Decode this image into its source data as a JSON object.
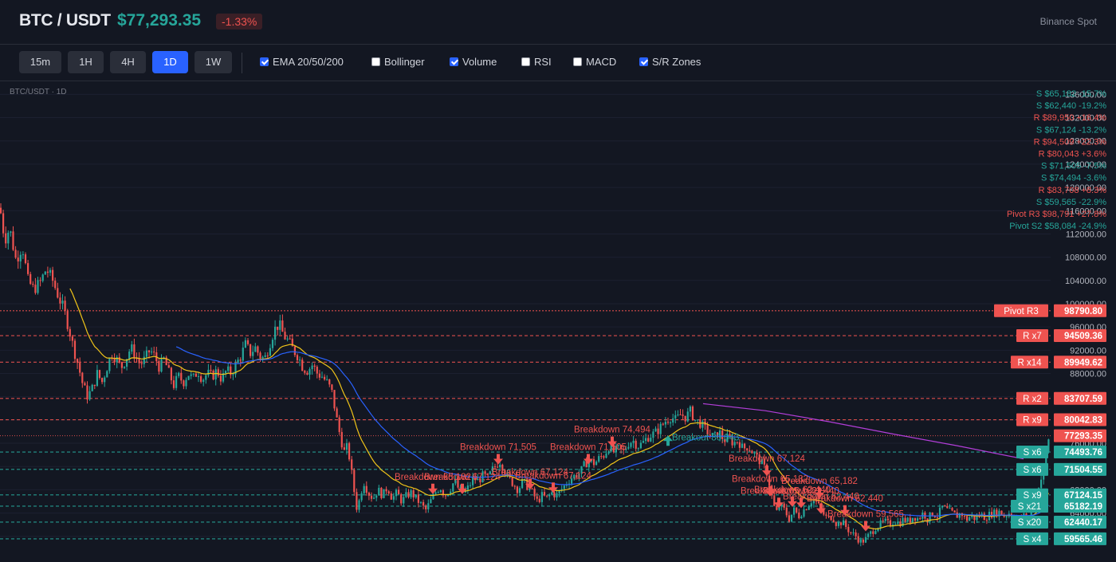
{
  "header": {
    "symbol": "BTC / USDT",
    "price": "$77,293.35",
    "change": "-1.33%",
    "exchange": "Binance Spot"
  },
  "toolbar": {
    "timeframes": [
      {
        "label": "15m",
        "active": false
      },
      {
        "label": "1H",
        "active": false
      },
      {
        "label": "4H",
        "active": false
      },
      {
        "label": "1D",
        "active": true
      },
      {
        "label": "1W",
        "active": false
      }
    ],
    "indicators": [
      {
        "label": "EMA 20/50/200",
        "checked": true
      },
      {
        "label": "Bollinger",
        "checked": false
      },
      {
        "label": "Volume",
        "checked": true
      },
      {
        "label": "RSI",
        "checked": false
      },
      {
        "label": "MACD",
        "checked": false
      },
      {
        "label": "S/R Zones",
        "checked": true
      }
    ]
  },
  "colors": {
    "bull": "#26a69a",
    "bear": "#ef5350",
    "ema20": "#f0c419",
    "ema50": "#2962ff",
    "ema200": "#b23ed8",
    "grid": "#1c2030",
    "background": "#131722"
  },
  "chart_data": {
    "type": "candlestick",
    "caption": "BTC/USDT · 1D",
    "ylim": [
      56400,
      136600
    ],
    "yticks": [
      136000,
      132000,
      128000,
      124000,
      120000,
      116000,
      112000,
      108000,
      104000,
      100000,
      96000,
      92000,
      88000,
      84000,
      80000,
      76000,
      72000,
      68000,
      64000,
      60000
    ],
    "ytick_labels": [
      "136000.00",
      "132000.00",
      "128000.00",
      "124000.00",
      "120000.00",
      "116000.00",
      "112000.00",
      "108000.00",
      "104000.00",
      "100000.00",
      "96000.00",
      "92000.00",
      "88000.00",
      "84000.00",
      "80000.00",
      "76000.00",
      "72000.00",
      "68000.00",
      "64000.00",
      "60000.00"
    ],
    "last_price": 77293.35,
    "last_price_label": "77293.35",
    "close_path": [
      [
        0,
        116500
      ],
      [
        6,
        111000
      ],
      [
        12,
        113000
      ],
      [
        20,
        107500
      ],
      [
        28,
        110000
      ],
      [
        35,
        104000
      ],
      [
        42,
        102500
      ],
      [
        50,
        103500
      ],
      [
        58,
        106000
      ],
      [
        66,
        104000
      ],
      [
        74,
        101000
      ],
      [
        80,
        99000
      ],
      [
        86,
        96000
      ],
      [
        92,
        92500
      ],
      [
        98,
        89500
      ],
      [
        104,
        86000
      ],
      [
        110,
        84000
      ],
      [
        116,
        85500
      ],
      [
        122,
        88000
      ],
      [
        128,
        86500
      ],
      [
        134,
        89000
      ],
      [
        140,
        91500
      ],
      [
        146,
        90500
      ],
      [
        152,
        89000
      ],
      [
        158,
        90500
      ],
      [
        164,
        92500
      ],
      [
        170,
        91000
      ],
      [
        176,
        89500
      ],
      [
        182,
        90500
      ],
      [
        188,
        92000
      ],
      [
        194,
        91000
      ],
      [
        200,
        89000
      ],
      [
        206,
        90500
      ],
      [
        212,
        88000
      ],
      [
        218,
        86000
      ],
      [
        224,
        87500
      ],
      [
        230,
        86500
      ],
      [
        236,
        88000
      ],
      [
        242,
        87000
      ],
      [
        248,
        88500
      ],
      [
        254,
        87000
      ],
      [
        260,
        88000
      ],
      [
        266,
        87500
      ],
      [
        272,
        88500
      ],
      [
        278,
        87000
      ],
      [
        284,
        88500
      ],
      [
        290,
        88000
      ],
      [
        296,
        89500
      ],
      [
        302,
        91000
      ],
      [
        308,
        93000
      ],
      [
        314,
        91500
      ],
      [
        320,
        92500
      ],
      [
        326,
        91000
      ],
      [
        332,
        90500
      ],
      [
        338,
        93000
      ],
      [
        344,
        95500
      ],
      [
        350,
        96500
      ],
      [
        356,
        94500
      ],
      [
        362,
        93500
      ],
      [
        368,
        92000
      ],
      [
        374,
        91000
      ],
      [
        380,
        89000
      ],
      [
        386,
        88500
      ],
      [
        392,
        89500
      ],
      [
        398,
        88000
      ],
      [
        404,
        87500
      ],
      [
        410,
        86500
      ],
      [
        416,
        85000
      ],
      [
        420,
        82000
      ],
      [
        424,
        79000
      ],
      [
        428,
        76500
      ],
      [
        432,
        74500
      ],
      [
        436,
        75500
      ],
      [
        440,
        72000
      ],
      [
        444,
        68000
      ],
      [
        448,
        64500
      ],
      [
        452,
        67000
      ],
      [
        456,
        69500
      ],
      [
        462,
        67500
      ],
      [
        468,
        66500
      ],
      [
        474,
        68000
      ],
      [
        480,
        67000
      ],
      [
        486,
        68500
      ],
      [
        492,
        66500
      ],
      [
        498,
        67500
      ],
      [
        504,
        66000
      ],
      [
        510,
        67000
      ],
      [
        516,
        67500
      ],
      [
        522,
        66500
      ],
      [
        528,
        65500
      ],
      [
        534,
        64500
      ],
      [
        540,
        66000
      ],
      [
        546,
        67500
      ],
      [
        552,
        68500
      ],
      [
        558,
        67000
      ],
      [
        564,
        68000
      ],
      [
        570,
        69500
      ],
      [
        576,
        68000
      ],
      [
        582,
        67500
      ],
      [
        588,
        68500
      ],
      [
        594,
        70000
      ],
      [
        600,
        69500
      ],
      [
        606,
        70500
      ],
      [
        612,
        70000
      ],
      [
        618,
        71500
      ],
      [
        624,
        72500
      ],
      [
        628,
        73000
      ],
      [
        632,
        71500
      ],
      [
        638,
        70000
      ],
      [
        644,
        69000
      ],
      [
        650,
        68000
      ],
      [
        656,
        69500
      ],
      [
        662,
        68500
      ],
      [
        668,
        67500
      ],
      [
        674,
        66000
      ],
      [
        680,
        67000
      ],
      [
        686,
        66500
      ],
      [
        692,
        67500
      ],
      [
        698,
        67000
      ],
      [
        704,
        68000
      ],
      [
        710,
        69000
      ],
      [
        716,
        70000
      ],
      [
        722,
        70500
      ],
      [
        728,
        71000
      ],
      [
        734,
        72500
      ],
      [
        740,
        73000
      ],
      [
        746,
        72500
      ],
      [
        752,
        73500
      ],
      [
        758,
        74000
      ],
      [
        764,
        75500
      ],
      [
        770,
        74500
      ],
      [
        776,
        75000
      ],
      [
        782,
        74500
      ],
      [
        788,
        76000
      ],
      [
        794,
        76500
      ],
      [
        800,
        75500
      ],
      [
        806,
        76000
      ],
      [
        812,
        77000
      ],
      [
        818,
        77500
      ],
      [
        824,
        78000
      ],
      [
        830,
        79000
      ],
      [
        836,
        80000
      ],
      [
        842,
        80500
      ],
      [
        848,
        80000
      ],
      [
        854,
        81000
      ],
      [
        860,
        80500
      ],
      [
        866,
        81500
      ],
      [
        872,
        80000
      ],
      [
        878,
        79500
      ],
      [
        884,
        78500
      ],
      [
        890,
        77500
      ],
      [
        896,
        77000
      ],
      [
        902,
        78000
      ],
      [
        908,
        76500
      ],
      [
        914,
        77000
      ],
      [
        920,
        76000
      ],
      [
        926,
        76500
      ],
      [
        932,
        75000
      ],
      [
        938,
        75500
      ],
      [
        944,
        74500
      ],
      [
        950,
        73500
      ],
      [
        956,
        72500
      ],
      [
        962,
        71000
      ],
      [
        966,
        68500
      ],
      [
        970,
        65500
      ],
      [
        974,
        64000
      ],
      [
        978,
        65500
      ],
      [
        984,
        64500
      ],
      [
        990,
        63000
      ],
      [
        996,
        64500
      ],
      [
        1002,
        63500
      ],
      [
        1008,
        64500
      ],
      [
        1014,
        65500
      ],
      [
        1020,
        66500
      ],
      [
        1026,
        65500
      ],
      [
        1032,
        64000
      ],
      [
        1038,
        63000
      ],
      [
        1044,
        63500
      ],
      [
        1050,
        62000
      ],
      [
        1056,
        62500
      ],
      [
        1062,
        61500
      ],
      [
        1068,
        60500
      ],
      [
        1074,
        60000
      ],
      [
        1080,
        59000
      ],
      [
        1086,
        59500
      ],
      [
        1092,
        60500
      ],
      [
        1098,
        61500
      ],
      [
        1104,
        62000
      ],
      [
        1110,
        62500
      ],
      [
        1116,
        62000
      ],
      [
        1122,
        62800
      ],
      [
        1128,
        62200
      ],
      [
        1134,
        63000
      ],
      [
        1140,
        62500
      ],
      [
        1146,
        63500
      ],
      [
        1152,
        63000
      ],
      [
        1158,
        64000
      ],
      [
        1164,
        63000
      ],
      [
        1170,
        64000
      ],
      [
        1176,
        63500
      ],
      [
        1182,
        65000
      ],
      [
        1188,
        64500
      ],
      [
        1194,
        64000
      ],
      [
        1200,
        63500
      ],
      [
        1206,
        64000
      ],
      [
        1212,
        62800
      ],
      [
        1218,
        63500
      ],
      [
        1224,
        63000
      ],
      [
        1230,
        63800
      ],
      [
        1236,
        63200
      ],
      [
        1242,
        63800
      ],
      [
        1248,
        64000
      ],
      [
        1254,
        64200
      ],
      [
        1260,
        63500
      ],
      [
        1266,
        64000
      ],
      [
        1272,
        63500
      ],
      [
        1278,
        63000
      ],
      [
        1284,
        63500
      ],
      [
        1290,
        63200
      ],
      [
        1296,
        65000
      ],
      [
        1302,
        68500
      ],
      [
        1308,
        70500
      ],
      [
        1312,
        74000
      ],
      [
        1316,
        77300
      ]
    ],
    "ema200_path": [
      [
        882,
        82800
      ],
      [
        960,
        81600
      ],
      [
        1040,
        79700
      ],
      [
        1120,
        77600
      ],
      [
        1200,
        75600
      ],
      [
        1284,
        73300
      ]
    ],
    "sr_levels": [
      {
        "type": "pivot",
        "label": "Pivot R3",
        "price": 98790.8,
        "price_label": "98790.80",
        "color": "#ef5350"
      },
      {
        "type": "resistance",
        "label": "R x7",
        "price": 94509.36,
        "price_label": "94509.36",
        "color": "#ef5350"
      },
      {
        "type": "resistance",
        "label": "R x14",
        "price": 89949.62,
        "price_label": "89949.62",
        "color": "#ef5350"
      },
      {
        "type": "resistance",
        "label": "R x2",
        "price": 83707.59,
        "price_label": "83707.59",
        "color": "#ef5350"
      },
      {
        "type": "resistance",
        "label": "R x9",
        "price": 80042.83,
        "price_label": "80042.83",
        "color": "#ef5350"
      },
      {
        "type": "support",
        "label": "S x6",
        "price": 74493.76,
        "price_label": "74493.76",
        "color": "#26a69a"
      },
      {
        "type": "support",
        "label": "S x6",
        "price": 71504.55,
        "price_label": "71504.55",
        "color": "#26a69a"
      },
      {
        "type": "support",
        "label": "S x9",
        "price": 67124.15,
        "price_label": "67124.15",
        "color": "#26a69a"
      },
      {
        "type": "support",
        "label": "S x21",
        "price": 65182.19,
        "price_label": "65182.19",
        "color": "#26a69a"
      },
      {
        "type": "support",
        "label": "S x20",
        "price": 62440.17,
        "price_label": "62440.17",
        "color": "#26a69a"
      },
      {
        "type": "support",
        "label": "S x4",
        "price": 59565.46,
        "price_label": "59565.46",
        "color": "#26a69a"
      }
    ],
    "sr_legend": [
      {
        "text": "S $65,182 -15.7%",
        "color": "#26a69a"
      },
      {
        "text": "S $62,440 -19.2%",
        "color": "#26a69a"
      },
      {
        "text": "R $89,950 +16.4%",
        "color": "#ef5350"
      },
      {
        "text": "S $67,124 -13.2%",
        "color": "#26a69a"
      },
      {
        "text": "R $94,509 +22.3%",
        "color": "#ef5350"
      },
      {
        "text": "R $80,043 +3.6%",
        "color": "#ef5350"
      },
      {
        "text": "S $71,505 -7.5%",
        "color": "#26a69a"
      },
      {
        "text": "S $74,494 -3.6%",
        "color": "#26a69a"
      },
      {
        "text": "R $83,708 +8.3%",
        "color": "#ef5350"
      },
      {
        "text": "S $59,565 -22.9%",
        "color": "#26a69a"
      },
      {
        "text": "Pivot R3 $98,791 +27.8%",
        "color": "#ef5350"
      },
      {
        "text": "Pivot S2 $58,084 -24.9%",
        "color": "#26a69a"
      }
    ],
    "signals": [
      {
        "text": "Breakdown 71,505",
        "x": 625,
        "price": 72500,
        "dir": "down",
        "color": "#ef5350"
      },
      {
        "text": "Breakdown 74,494",
        "x": 768,
        "price": 75500,
        "dir": "down",
        "color": "#ef5350"
      },
      {
        "text": "Breakdown 71,505",
        "x": 738,
        "price": 72500,
        "dir": "down",
        "color": "#ef5350"
      },
      {
        "text": "Breakout 80,043",
        "x": 838,
        "price": 77200,
        "dir": "up",
        "color": "#26a69a"
      },
      {
        "text": "Breakdown 67,124",
        "x": 962,
        "price": 70500,
        "dir": "down",
        "color": "#ef5350"
      },
      {
        "text": "Breakdown 65,182",
        "x": 966,
        "price": 67000,
        "dir": "down",
        "color": "#ef5350"
      },
      {
        "text": "Breakdown 65,182",
        "x": 1028,
        "price": 66700,
        "dir": "down",
        "color": "#ef5350"
      },
      {
        "text": "Breakdown 62,440",
        "x": 1030,
        "price": 64000,
        "dir": "down",
        "color": "#ef5350"
      },
      {
        "text": "Breakdown 59,565",
        "x": 1086,
        "price": 61000,
        "dir": "down",
        "color": "#ef5350"
      },
      {
        "text": "Breakdown 65,182",
        "x": 543,
        "price": 67400,
        "dir": "down",
        "color": "#ef5350"
      },
      {
        "text": "Breakdown 67,124",
        "x": 580,
        "price": 67400,
        "dir": "down",
        "color": "#ef5350"
      },
      {
        "text": "Breakdown 67,124",
        "x": 665,
        "price": 68200,
        "dir": "down",
        "color": "#ef5350"
      },
      {
        "text": "Breakdown 67,124",
        "x": 694,
        "price": 67600,
        "dir": "down",
        "color": "#ef5350"
      },
      {
        "text": "Breakdown 65,182",
        "x": 977,
        "price": 65000,
        "dir": "down",
        "color": "#ef5350"
      },
      {
        "text": "Breakdown 62,440",
        "x": 1005,
        "price": 65000,
        "dir": "down",
        "color": "#ef5350"
      },
      {
        "text": "Breakdown 62,440",
        "x": 994,
        "price": 65200,
        "dir": "down",
        "color": "#ef5350"
      },
      {
        "text": "Breakdown 62,440",
        "x": 1060,
        "price": 63700,
        "dir": "down",
        "color": "#ef5350"
      }
    ]
  }
}
